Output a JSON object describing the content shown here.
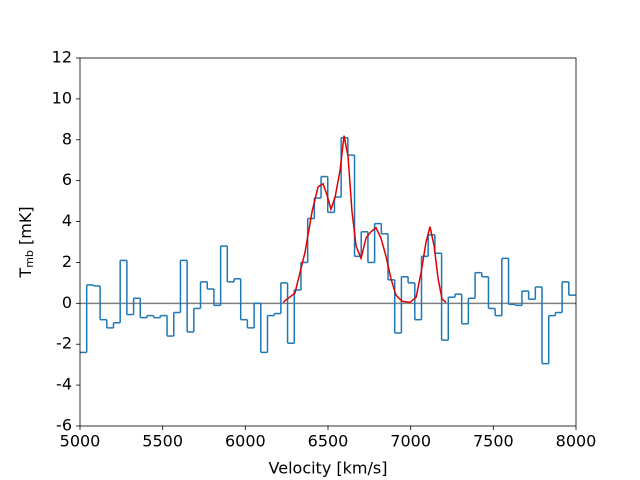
{
  "chart_data": {
    "type": "step",
    "xlabel": "Velocity [km/s]",
    "ylabel": [
      "T",
      "mb",
      " [mK]"
    ],
    "xlim": [
      5000,
      8000
    ],
    "ylim": [
      -6,
      12
    ],
    "xticks": [
      5000,
      5500,
      6000,
      6500,
      7000,
      7500,
      8000
    ],
    "yticks": [
      -6,
      -4,
      -2,
      0,
      2,
      4,
      6,
      8,
      10,
      12
    ],
    "color": "#1f77b4",
    "bins": [
      5000,
      5040.5,
      5081,
      5121.5,
      5162,
      5202.5,
      5243,
      5283.5,
      5324,
      5364.5,
      5405,
      5445.5,
      5486,
      5526.5,
      5567,
      5607.5,
      5648,
      5688.5,
      5729,
      5769.5,
      5810,
      5850.5,
      5891,
      5931.5,
      5972,
      6012.5,
      6053,
      6093.5,
      6134,
      6174.5,
      6215,
      6255.5,
      6296,
      6336.5,
      6377,
      6417.5,
      6458,
      6498.5,
      6539,
      6579.5,
      6620,
      6660.5,
      6701,
      6741.5,
      6782,
      6822.5,
      6863,
      6903.5,
      6944,
      6984.5,
      7025,
      7065.5,
      7106,
      7146.5,
      7187,
      7227.5,
      7268,
      7308.5,
      7349,
      7389.5,
      7430,
      7470.5,
      7511,
      7551.5,
      7592,
      7632.5,
      7673,
      7713.5,
      7754,
      7794.5,
      7835,
      7875.5,
      7916,
      7956.5,
      7997
    ],
    "counts": [
      -2.4,
      0.9,
      0.85,
      -0.8,
      -1.2,
      -0.95,
      2.1,
      -0.55,
      0.25,
      -0.7,
      -0.6,
      -0.7,
      -0.6,
      -1.6,
      -0.45,
      2.1,
      -1.4,
      -0.25,
      1.05,
      0.7,
      -0.1,
      2.8,
      1.05,
      1.2,
      -0.8,
      -1.2,
      0,
      -2.4,
      -0.6,
      -0.5,
      1.0,
      -1.95,
      0.65,
      2.0,
      4.15,
      5.15,
      6.2,
      4.45,
      5.2,
      8.1,
      7.25,
      2.3,
      3.5,
      2.0,
      3.9,
      3.4,
      1.15,
      -1.45,
      1.3,
      1.0,
      -0.8,
      2.3,
      3.35,
      2.45,
      -1.8,
      0.3,
      0.45,
      -1.0,
      0.25,
      1.5,
      1.3,
      -0.25,
      -0.6,
      2.2,
      -0.05,
      -0.1,
      0.6,
      0.2,
      0.8,
      -2.95,
      -0.6,
      -0.45,
      1.05,
      0.4
    ],
    "fit": {
      "color": "#e00000",
      "x": [
        6228,
        6300,
        6361,
        6404,
        6440,
        6470,
        6494,
        6518,
        6543,
        6573,
        6597,
        6621,
        6645,
        6670,
        6700,
        6730,
        6760,
        6790,
        6820,
        6851,
        6881,
        6911,
        6948,
        6997,
        7033,
        7063,
        7093,
        7117,
        7142,
        7166,
        7190,
        7214
      ],
      "values": [
        0.05,
        0.5,
        2.5,
        4.5,
        5.7,
        5.85,
        5.3,
        4.6,
        5.2,
        6.5,
        8.2,
        7.2,
        4.5,
        2.8,
        2.2,
        3.2,
        3.5,
        3.7,
        3.2,
        2.3,
        1.2,
        0.4,
        0.1,
        0.05,
        0.3,
        1.5,
        3.0,
        3.75,
        2.8,
        1.2,
        0.2,
        0.05
      ]
    },
    "hline": {
      "value": 0,
      "color": "#808080"
    }
  }
}
